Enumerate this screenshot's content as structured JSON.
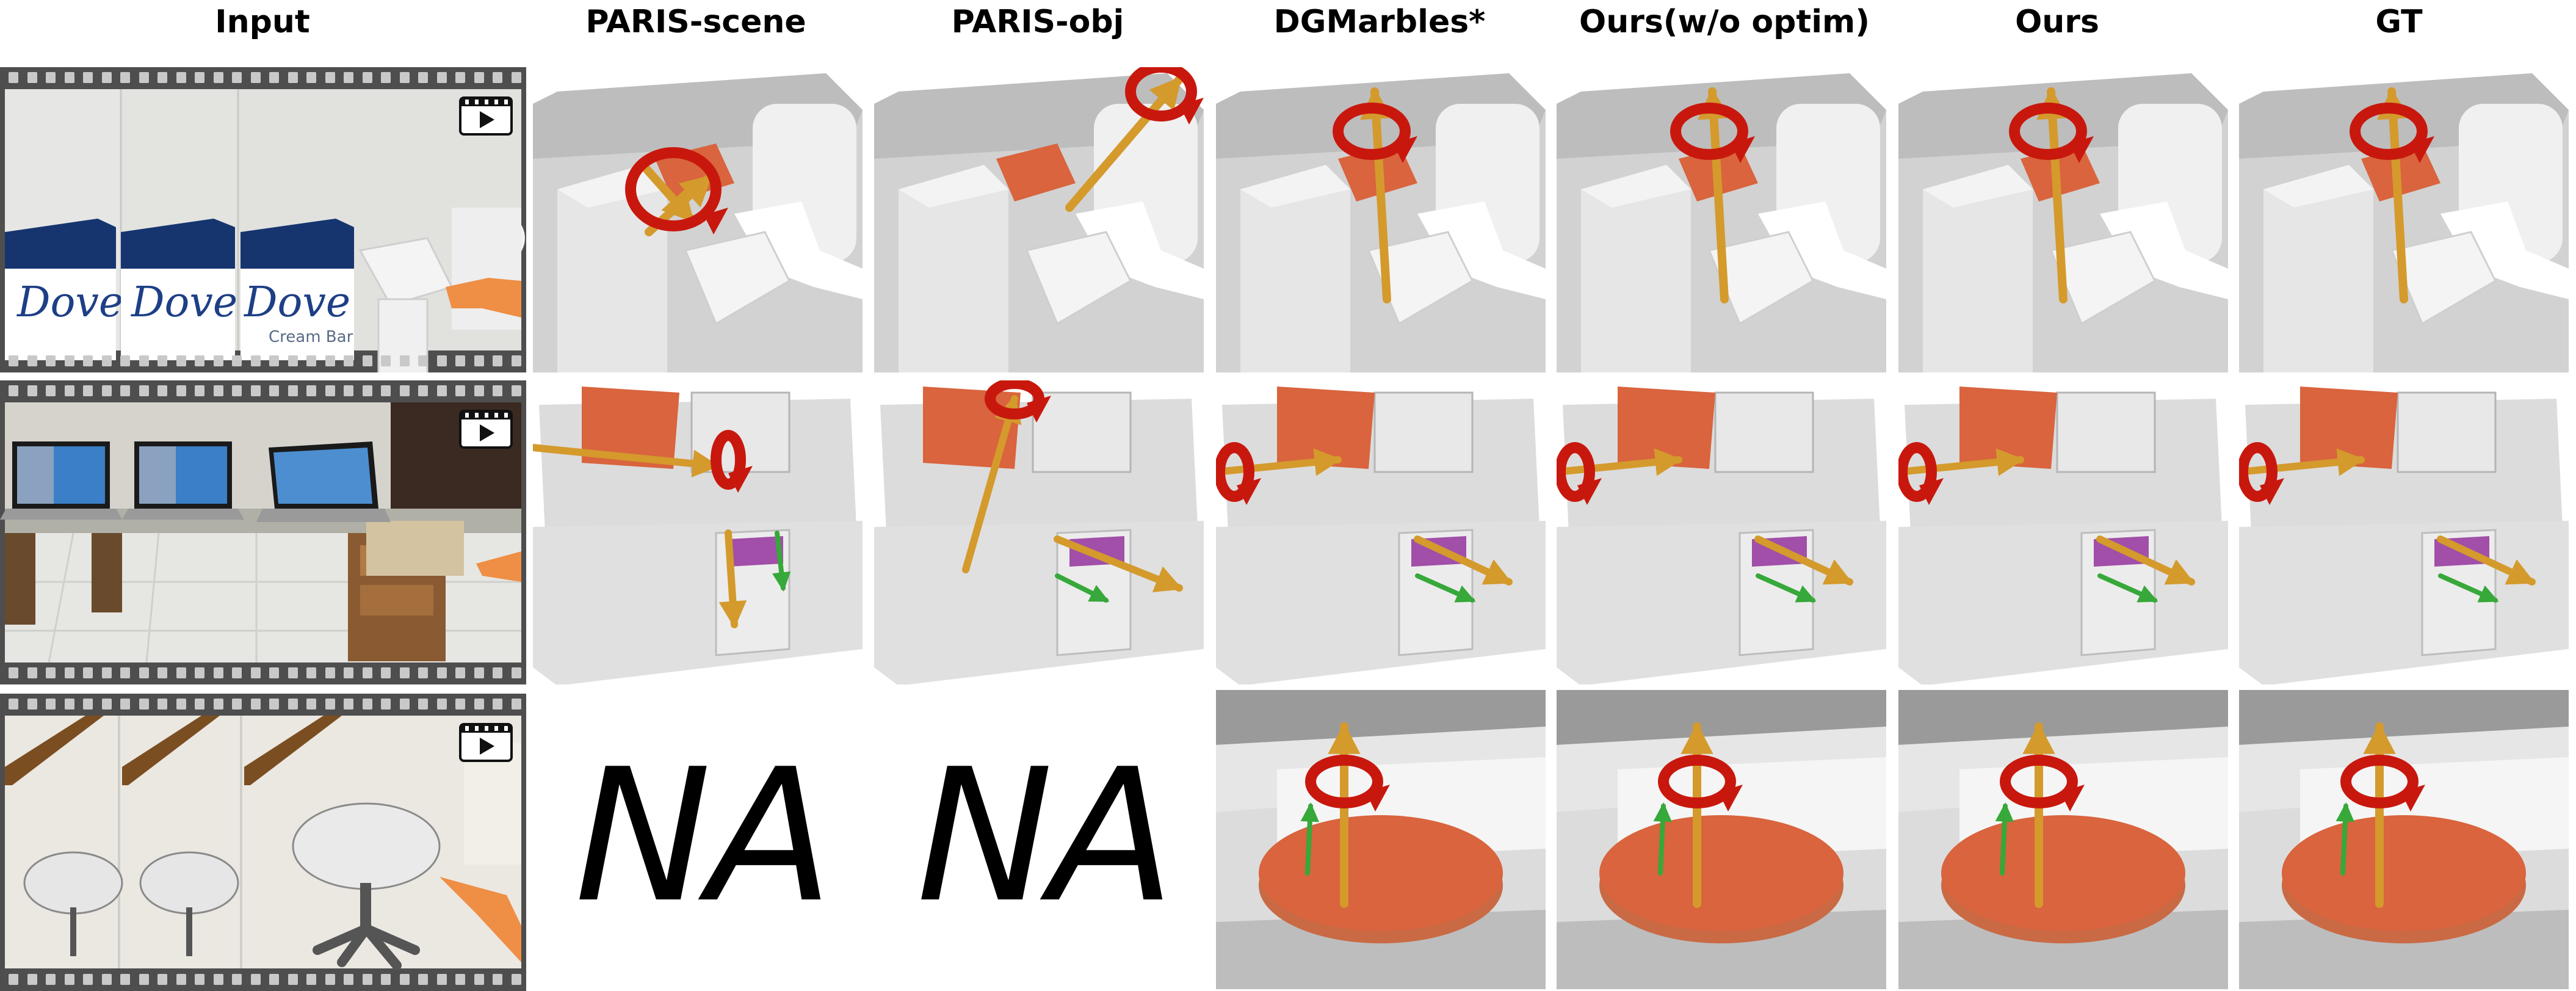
{
  "columns": [
    {
      "label": "Input"
    },
    {
      "label": "PARIS-scene"
    },
    {
      "label": "PARIS-obj"
    },
    {
      "label": "DGMarbles*"
    },
    {
      "label": "Ours(w/o optim)"
    },
    {
      "label": "Ours"
    },
    {
      "label": "GT"
    }
  ],
  "rows": [
    {
      "scene": "soap-dispenser",
      "cells": [
        "render",
        "render",
        "render",
        "render",
        "render",
        "render",
        "render"
      ]
    },
    {
      "scene": "desk-laptop-drawer",
      "cells": [
        "render",
        "render",
        "render",
        "render",
        "render",
        "render",
        "render"
      ]
    },
    {
      "scene": "round-table",
      "cells": [
        "render",
        "na",
        "na",
        "render",
        "render",
        "render",
        "render"
      ]
    }
  ],
  "na_text": "NA",
  "input_row1": {
    "brand": "Dove",
    "sub": "Cream Bar"
  },
  "colors": {
    "part_orange": "#d9643d",
    "rotation_red": "#c8180e",
    "axis_gold": "#d49a2c",
    "translation_green": "#37a83a",
    "part_purple": "#a14fa8",
    "scene_gray": "#cfcfcf",
    "film_dark": "#555555"
  }
}
